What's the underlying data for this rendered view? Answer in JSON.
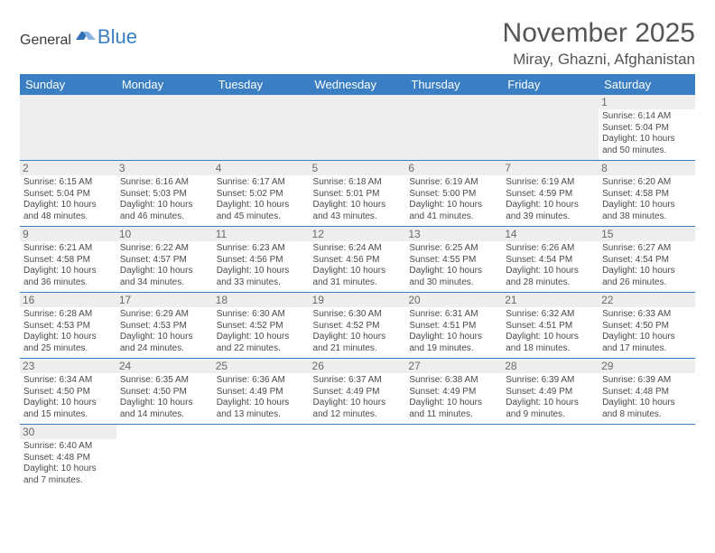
{
  "logo": {
    "text1": "General",
    "text2": "Blue"
  },
  "title": "November 2025",
  "location": "Miray, Ghazni, Afghanistan",
  "colors": {
    "header_bg": "#3a7fc4",
    "header_text": "#ffffff",
    "border": "#3a7fc4",
    "daynum_bg": "#eeeeee",
    "text": "#4a4a4a"
  },
  "weekdays": [
    "Sunday",
    "Monday",
    "Tuesday",
    "Wednesday",
    "Thursday",
    "Friday",
    "Saturday"
  ],
  "weeks": [
    [
      null,
      null,
      null,
      null,
      null,
      null,
      {
        "n": "1",
        "sr": "Sunrise: 6:14 AM",
        "ss": "Sunset: 5:04 PM",
        "dl": "Daylight: 10 hours and 50 minutes."
      }
    ],
    [
      {
        "n": "2",
        "sr": "Sunrise: 6:15 AM",
        "ss": "Sunset: 5:04 PM",
        "dl": "Daylight: 10 hours and 48 minutes."
      },
      {
        "n": "3",
        "sr": "Sunrise: 6:16 AM",
        "ss": "Sunset: 5:03 PM",
        "dl": "Daylight: 10 hours and 46 minutes."
      },
      {
        "n": "4",
        "sr": "Sunrise: 6:17 AM",
        "ss": "Sunset: 5:02 PM",
        "dl": "Daylight: 10 hours and 45 minutes."
      },
      {
        "n": "5",
        "sr": "Sunrise: 6:18 AM",
        "ss": "Sunset: 5:01 PM",
        "dl": "Daylight: 10 hours and 43 minutes."
      },
      {
        "n": "6",
        "sr": "Sunrise: 6:19 AM",
        "ss": "Sunset: 5:00 PM",
        "dl": "Daylight: 10 hours and 41 minutes."
      },
      {
        "n": "7",
        "sr": "Sunrise: 6:19 AM",
        "ss": "Sunset: 4:59 PM",
        "dl": "Daylight: 10 hours and 39 minutes."
      },
      {
        "n": "8",
        "sr": "Sunrise: 6:20 AM",
        "ss": "Sunset: 4:58 PM",
        "dl": "Daylight: 10 hours and 38 minutes."
      }
    ],
    [
      {
        "n": "9",
        "sr": "Sunrise: 6:21 AM",
        "ss": "Sunset: 4:58 PM",
        "dl": "Daylight: 10 hours and 36 minutes."
      },
      {
        "n": "10",
        "sr": "Sunrise: 6:22 AM",
        "ss": "Sunset: 4:57 PM",
        "dl": "Daylight: 10 hours and 34 minutes."
      },
      {
        "n": "11",
        "sr": "Sunrise: 6:23 AM",
        "ss": "Sunset: 4:56 PM",
        "dl": "Daylight: 10 hours and 33 minutes."
      },
      {
        "n": "12",
        "sr": "Sunrise: 6:24 AM",
        "ss": "Sunset: 4:56 PM",
        "dl": "Daylight: 10 hours and 31 minutes."
      },
      {
        "n": "13",
        "sr": "Sunrise: 6:25 AM",
        "ss": "Sunset: 4:55 PM",
        "dl": "Daylight: 10 hours and 30 minutes."
      },
      {
        "n": "14",
        "sr": "Sunrise: 6:26 AM",
        "ss": "Sunset: 4:54 PM",
        "dl": "Daylight: 10 hours and 28 minutes."
      },
      {
        "n": "15",
        "sr": "Sunrise: 6:27 AM",
        "ss": "Sunset: 4:54 PM",
        "dl": "Daylight: 10 hours and 26 minutes."
      }
    ],
    [
      {
        "n": "16",
        "sr": "Sunrise: 6:28 AM",
        "ss": "Sunset: 4:53 PM",
        "dl": "Daylight: 10 hours and 25 minutes."
      },
      {
        "n": "17",
        "sr": "Sunrise: 6:29 AM",
        "ss": "Sunset: 4:53 PM",
        "dl": "Daylight: 10 hours and 24 minutes."
      },
      {
        "n": "18",
        "sr": "Sunrise: 6:30 AM",
        "ss": "Sunset: 4:52 PM",
        "dl": "Daylight: 10 hours and 22 minutes."
      },
      {
        "n": "19",
        "sr": "Sunrise: 6:30 AM",
        "ss": "Sunset: 4:52 PM",
        "dl": "Daylight: 10 hours and 21 minutes."
      },
      {
        "n": "20",
        "sr": "Sunrise: 6:31 AM",
        "ss": "Sunset: 4:51 PM",
        "dl": "Daylight: 10 hours and 19 minutes."
      },
      {
        "n": "21",
        "sr": "Sunrise: 6:32 AM",
        "ss": "Sunset: 4:51 PM",
        "dl": "Daylight: 10 hours and 18 minutes."
      },
      {
        "n": "22",
        "sr": "Sunrise: 6:33 AM",
        "ss": "Sunset: 4:50 PM",
        "dl": "Daylight: 10 hours and 17 minutes."
      }
    ],
    [
      {
        "n": "23",
        "sr": "Sunrise: 6:34 AM",
        "ss": "Sunset: 4:50 PM",
        "dl": "Daylight: 10 hours and 15 minutes."
      },
      {
        "n": "24",
        "sr": "Sunrise: 6:35 AM",
        "ss": "Sunset: 4:50 PM",
        "dl": "Daylight: 10 hours and 14 minutes."
      },
      {
        "n": "25",
        "sr": "Sunrise: 6:36 AM",
        "ss": "Sunset: 4:49 PM",
        "dl": "Daylight: 10 hours and 13 minutes."
      },
      {
        "n": "26",
        "sr": "Sunrise: 6:37 AM",
        "ss": "Sunset: 4:49 PM",
        "dl": "Daylight: 10 hours and 12 minutes."
      },
      {
        "n": "27",
        "sr": "Sunrise: 6:38 AM",
        "ss": "Sunset: 4:49 PM",
        "dl": "Daylight: 10 hours and 11 minutes."
      },
      {
        "n": "28",
        "sr": "Sunrise: 6:39 AM",
        "ss": "Sunset: 4:49 PM",
        "dl": "Daylight: 10 hours and 9 minutes."
      },
      {
        "n": "29",
        "sr": "Sunrise: 6:39 AM",
        "ss": "Sunset: 4:48 PM",
        "dl": "Daylight: 10 hours and 8 minutes."
      }
    ],
    [
      {
        "n": "30",
        "sr": "Sunrise: 6:40 AM",
        "ss": "Sunset: 4:48 PM",
        "dl": "Daylight: 10 hours and 7 minutes."
      },
      null,
      null,
      null,
      null,
      null,
      null
    ]
  ]
}
